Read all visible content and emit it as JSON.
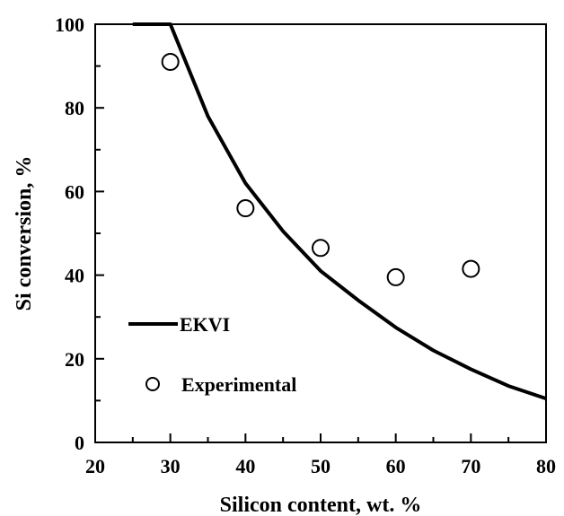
{
  "chart_data": {
    "type": "line",
    "xlabel": "Silicon content, wt. %",
    "ylabel": "Si conversion, %",
    "xlim": [
      20,
      80
    ],
    "ylim": [
      0,
      100
    ],
    "x_ticks": [
      "20",
      "30",
      "40",
      "50",
      "60",
      "70",
      "80"
    ],
    "y_ticks": [
      "0",
      "20",
      "40",
      "60",
      "80",
      "100"
    ],
    "grid": false,
    "legend_position": "left",
    "series": [
      {
        "name": "EKVI",
        "style": "solid-line",
        "color": "#000000",
        "x": [
          25,
          30,
          35,
          40,
          45,
          50,
          55,
          60,
          65,
          70,
          75,
          80
        ],
        "y": [
          100,
          100,
          78,
          62,
          50.5,
          41,
          34,
          27.5,
          22,
          17.5,
          13.5,
          10.5
        ]
      },
      {
        "name": "Experimental",
        "style": "open-circle",
        "color": "#000000",
        "x": [
          30,
          40,
          50,
          60,
          70
        ],
        "y": [
          91,
          56,
          46.5,
          39.5,
          41.5
        ]
      }
    ]
  }
}
